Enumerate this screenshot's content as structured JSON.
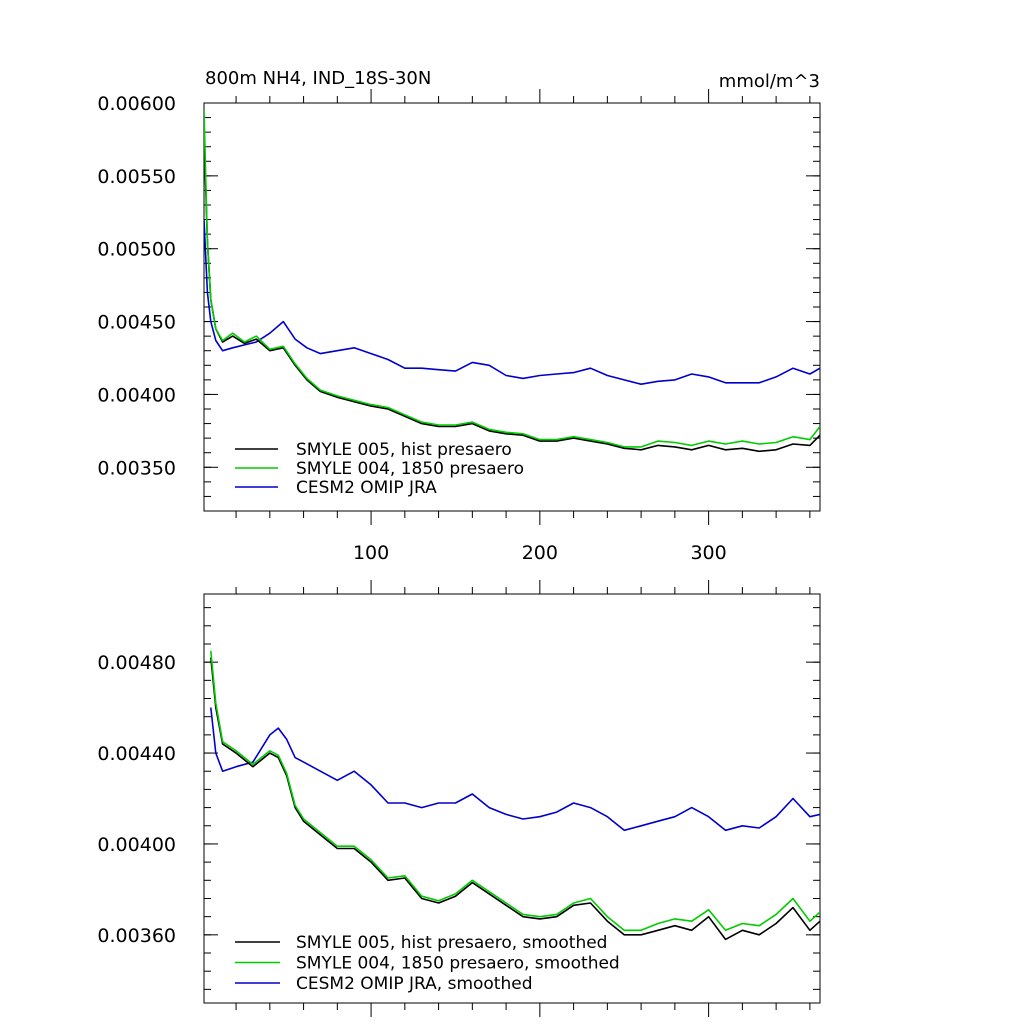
{
  "chart_data": [
    {
      "type": "line",
      "title": "800m NH4, IND_18S-30N",
      "units": "mmol/m^3",
      "xlim": [
        1,
        366
      ],
      "ylim": [
        0.0032,
        0.006
      ],
      "xticks": [
        100,
        200,
        300
      ],
      "xtick_labels": [
        "100",
        "200",
        "300"
      ],
      "yticks": [
        0.0035,
        0.004,
        0.0045,
        0.005,
        0.0055,
        0.006
      ],
      "ytick_labels": [
        "0.00350",
        "0.00400",
        "0.00450",
        "0.00500",
        "0.00550",
        "0.00600"
      ],
      "grid": false,
      "legend_position": "bottom-left",
      "series": [
        {
          "name": "SMYLE 005, hist presaero",
          "color": "#000000",
          "x": [
            1,
            3,
            5,
            8,
            12,
            18,
            25,
            32,
            40,
            48,
            55,
            62,
            70,
            80,
            90,
            100,
            110,
            120,
            130,
            140,
            150,
            160,
            170,
            180,
            190,
            200,
            210,
            220,
            230,
            240,
            250,
            260,
            270,
            280,
            290,
            300,
            310,
            320,
            330,
            340,
            350,
            360,
            366
          ],
          "values": [
            0.0058,
            0.00505,
            0.00465,
            0.00445,
            0.00436,
            0.0044,
            0.00435,
            0.00438,
            0.0043,
            0.00432,
            0.0042,
            0.0041,
            0.00402,
            0.00398,
            0.00395,
            0.00392,
            0.0039,
            0.00385,
            0.0038,
            0.00378,
            0.00378,
            0.0038,
            0.00375,
            0.00373,
            0.00372,
            0.00368,
            0.00368,
            0.0037,
            0.00368,
            0.00366,
            0.00363,
            0.00362,
            0.00365,
            0.00364,
            0.00362,
            0.00365,
            0.00362,
            0.00363,
            0.00361,
            0.00362,
            0.00366,
            0.00365,
            0.00372
          ]
        },
        {
          "name": "SMYLE 004, 1850 presaero",
          "color": "#00cc00",
          "x": [
            1,
            3,
            5,
            8,
            12,
            18,
            25,
            32,
            40,
            48,
            55,
            62,
            70,
            80,
            90,
            100,
            110,
            120,
            130,
            140,
            150,
            160,
            170,
            180,
            190,
            200,
            210,
            220,
            230,
            240,
            250,
            260,
            270,
            280,
            290,
            300,
            310,
            320,
            330,
            340,
            350,
            360,
            366
          ],
          "values": [
            0.00595,
            0.00505,
            0.00465,
            0.00445,
            0.00437,
            0.00442,
            0.00436,
            0.0044,
            0.00431,
            0.00433,
            0.00421,
            0.00411,
            0.00403,
            0.00399,
            0.00396,
            0.00393,
            0.00391,
            0.00386,
            0.00381,
            0.00379,
            0.00379,
            0.00381,
            0.00376,
            0.00374,
            0.00373,
            0.00369,
            0.00369,
            0.00371,
            0.00369,
            0.00367,
            0.00364,
            0.00364,
            0.00368,
            0.00367,
            0.00365,
            0.00368,
            0.00366,
            0.00368,
            0.00366,
            0.00367,
            0.00371,
            0.00369,
            0.00378
          ]
        },
        {
          "name": "CESM2 OMIP JRA",
          "color": "#0000cc",
          "x": [
            1,
            3,
            5,
            8,
            12,
            18,
            25,
            32,
            40,
            48,
            55,
            62,
            70,
            80,
            90,
            100,
            110,
            120,
            130,
            140,
            150,
            160,
            170,
            180,
            190,
            200,
            210,
            220,
            230,
            240,
            250,
            260,
            270,
            280,
            290,
            300,
            310,
            320,
            330,
            340,
            350,
            360,
            366
          ],
          "values": [
            0.0052,
            0.0047,
            0.0045,
            0.00437,
            0.0043,
            0.00432,
            0.00434,
            0.00436,
            0.00442,
            0.0045,
            0.00438,
            0.00432,
            0.00428,
            0.0043,
            0.00432,
            0.00428,
            0.00424,
            0.00418,
            0.00418,
            0.00417,
            0.00416,
            0.00422,
            0.0042,
            0.00413,
            0.00411,
            0.00413,
            0.00414,
            0.00415,
            0.00418,
            0.00413,
            0.0041,
            0.00407,
            0.00409,
            0.0041,
            0.00414,
            0.00412,
            0.00408,
            0.00408,
            0.00408,
            0.00412,
            0.00418,
            0.00414,
            0.00418
          ]
        }
      ]
    },
    {
      "type": "line",
      "xlim": [
        1,
        366
      ],
      "ylim": [
        0.0033,
        0.0051
      ],
      "xticks": [
        100,
        200,
        300
      ],
      "yticks": [
        0.0036,
        0.004,
        0.0044,
        0.0048
      ],
      "ytick_labels": [
        "0.00360",
        "0.00400",
        "0.00440",
        "0.00480"
      ],
      "grid": false,
      "legend_position": "bottom-left",
      "series": [
        {
          "name": "SMYLE 005, hist presaero, smoothed",
          "color": "#000000",
          "x": [
            5,
            8,
            12,
            20,
            30,
            40,
            45,
            50,
            55,
            60,
            70,
            80,
            90,
            100,
            110,
            120,
            130,
            140,
            150,
            160,
            170,
            180,
            190,
            200,
            210,
            220,
            230,
            240,
            250,
            260,
            270,
            280,
            290,
            300,
            310,
            320,
            330,
            340,
            350,
            360,
            366
          ],
          "values": [
            0.00482,
            0.0046,
            0.00444,
            0.0044,
            0.00434,
            0.0044,
            0.00438,
            0.0043,
            0.00416,
            0.0041,
            0.00404,
            0.00398,
            0.00398,
            0.00392,
            0.00384,
            0.00385,
            0.00376,
            0.00374,
            0.00377,
            0.00383,
            0.00378,
            0.00373,
            0.00368,
            0.00367,
            0.00368,
            0.00373,
            0.00374,
            0.00366,
            0.0036,
            0.0036,
            0.00362,
            0.00364,
            0.00362,
            0.00368,
            0.00358,
            0.00362,
            0.0036,
            0.00365,
            0.00372,
            0.00362,
            0.00366
          ]
        },
        {
          "name": "SMYLE 004, 1850 presaero, smoothed",
          "color": "#00cc00",
          "x": [
            5,
            8,
            12,
            20,
            30,
            40,
            45,
            50,
            55,
            60,
            70,
            80,
            90,
            100,
            110,
            120,
            130,
            140,
            150,
            160,
            170,
            180,
            190,
            200,
            210,
            220,
            230,
            240,
            250,
            260,
            270,
            280,
            290,
            300,
            310,
            320,
            330,
            340,
            350,
            360,
            366
          ],
          "values": [
            0.00485,
            0.00462,
            0.00445,
            0.00441,
            0.00435,
            0.00441,
            0.00439,
            0.00431,
            0.00417,
            0.00411,
            0.00405,
            0.00399,
            0.00399,
            0.00393,
            0.00385,
            0.00386,
            0.00377,
            0.00375,
            0.00378,
            0.00384,
            0.00379,
            0.00374,
            0.00369,
            0.00368,
            0.00369,
            0.00374,
            0.00376,
            0.00368,
            0.00362,
            0.00362,
            0.00365,
            0.00367,
            0.00366,
            0.00371,
            0.00362,
            0.00365,
            0.00364,
            0.00369,
            0.00376,
            0.00366,
            0.0037
          ]
        },
        {
          "name": "CESM2 OMIP JRA, smoothed",
          "color": "#0000cc",
          "x": [
            5,
            8,
            12,
            20,
            30,
            40,
            45,
            50,
            55,
            60,
            70,
            80,
            90,
            100,
            110,
            120,
            130,
            140,
            150,
            160,
            170,
            180,
            190,
            200,
            210,
            220,
            230,
            240,
            250,
            260,
            270,
            280,
            290,
            300,
            310,
            320,
            330,
            340,
            350,
            360,
            366
          ],
          "values": [
            0.0046,
            0.0044,
            0.00432,
            0.00434,
            0.00436,
            0.00448,
            0.00451,
            0.00446,
            0.00438,
            0.00436,
            0.00432,
            0.00428,
            0.00432,
            0.00426,
            0.00418,
            0.00418,
            0.00416,
            0.00418,
            0.00418,
            0.00422,
            0.00416,
            0.00413,
            0.00411,
            0.00412,
            0.00414,
            0.00418,
            0.00416,
            0.00412,
            0.00406,
            0.00408,
            0.0041,
            0.00412,
            0.00416,
            0.00412,
            0.00406,
            0.00408,
            0.00407,
            0.00412,
            0.0042,
            0.00412,
            0.00413
          ]
        }
      ]
    }
  ]
}
